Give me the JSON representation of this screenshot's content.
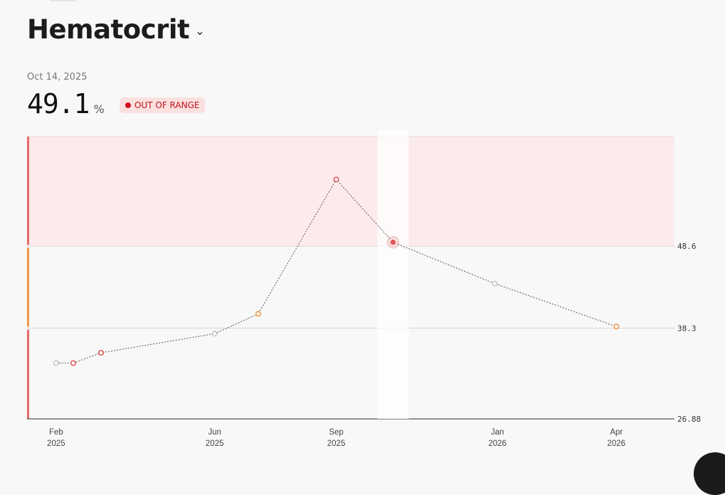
{
  "header": {
    "title": "Hematocrit",
    "chevron_icon": "chevron-down-icon"
  },
  "reading": {
    "date": "Oct 14, 2025",
    "value": "49.1",
    "unit": "%",
    "status": "OUT OF RANGE"
  },
  "colors": {
    "out_of_range_band": "#fcebec",
    "high_bar": "#e86a6a",
    "mid_bar": "#f0964a",
    "low_bar": "#e86a6a",
    "point_red": "#e05a5a",
    "point_orange": "#f0964a",
    "point_gray": "#9a9a9a"
  },
  "chart_data": {
    "type": "line",
    "y_ticks": [
      {
        "value": 26.88,
        "label": "26.88"
      },
      {
        "value": 38.3,
        "label": "38.3"
      },
      {
        "value": 48.6,
        "label": "48.6"
      }
    ],
    "ylim": [
      26.88,
      62.4
    ],
    "reference_range": {
      "low": 38.3,
      "high": 48.6
    },
    "x_ticks": [
      {
        "date": "2025-02-01",
        "month": "Feb",
        "year": "2025"
      },
      {
        "date": "2025-06-01",
        "month": "Jun",
        "year": "2025"
      },
      {
        "date": "2025-09-01",
        "month": "Sep",
        "year": "2025"
      },
      {
        "date": "2026-01-01",
        "month": "Jan",
        "year": "2026"
      },
      {
        "date": "2026-04-01",
        "month": "Apr",
        "year": "2026"
      }
    ],
    "xlim": [
      "2025-01-10",
      "2026-05-15"
    ],
    "highlight_date": "2025-10-14",
    "points": [
      {
        "date": "2025-02-01",
        "value": 33.9,
        "status": "gray"
      },
      {
        "date": "2025-02-14",
        "value": 33.9,
        "status": "red"
      },
      {
        "date": "2025-03-07",
        "value": 35.2,
        "status": "red"
      },
      {
        "date": "2025-06-01",
        "value": 37.6,
        "status": "gray"
      },
      {
        "date": "2025-07-04",
        "value": 40.1,
        "status": "orange"
      },
      {
        "date": "2025-09-01",
        "value": 57.0,
        "status": "red"
      },
      {
        "date": "2025-10-14",
        "value": 49.1,
        "status": "red",
        "selected": true
      },
      {
        "date": "2025-12-30",
        "value": 43.9,
        "status": "gray"
      },
      {
        "date": "2026-04-01",
        "value": 38.5,
        "status": "orange"
      }
    ]
  }
}
